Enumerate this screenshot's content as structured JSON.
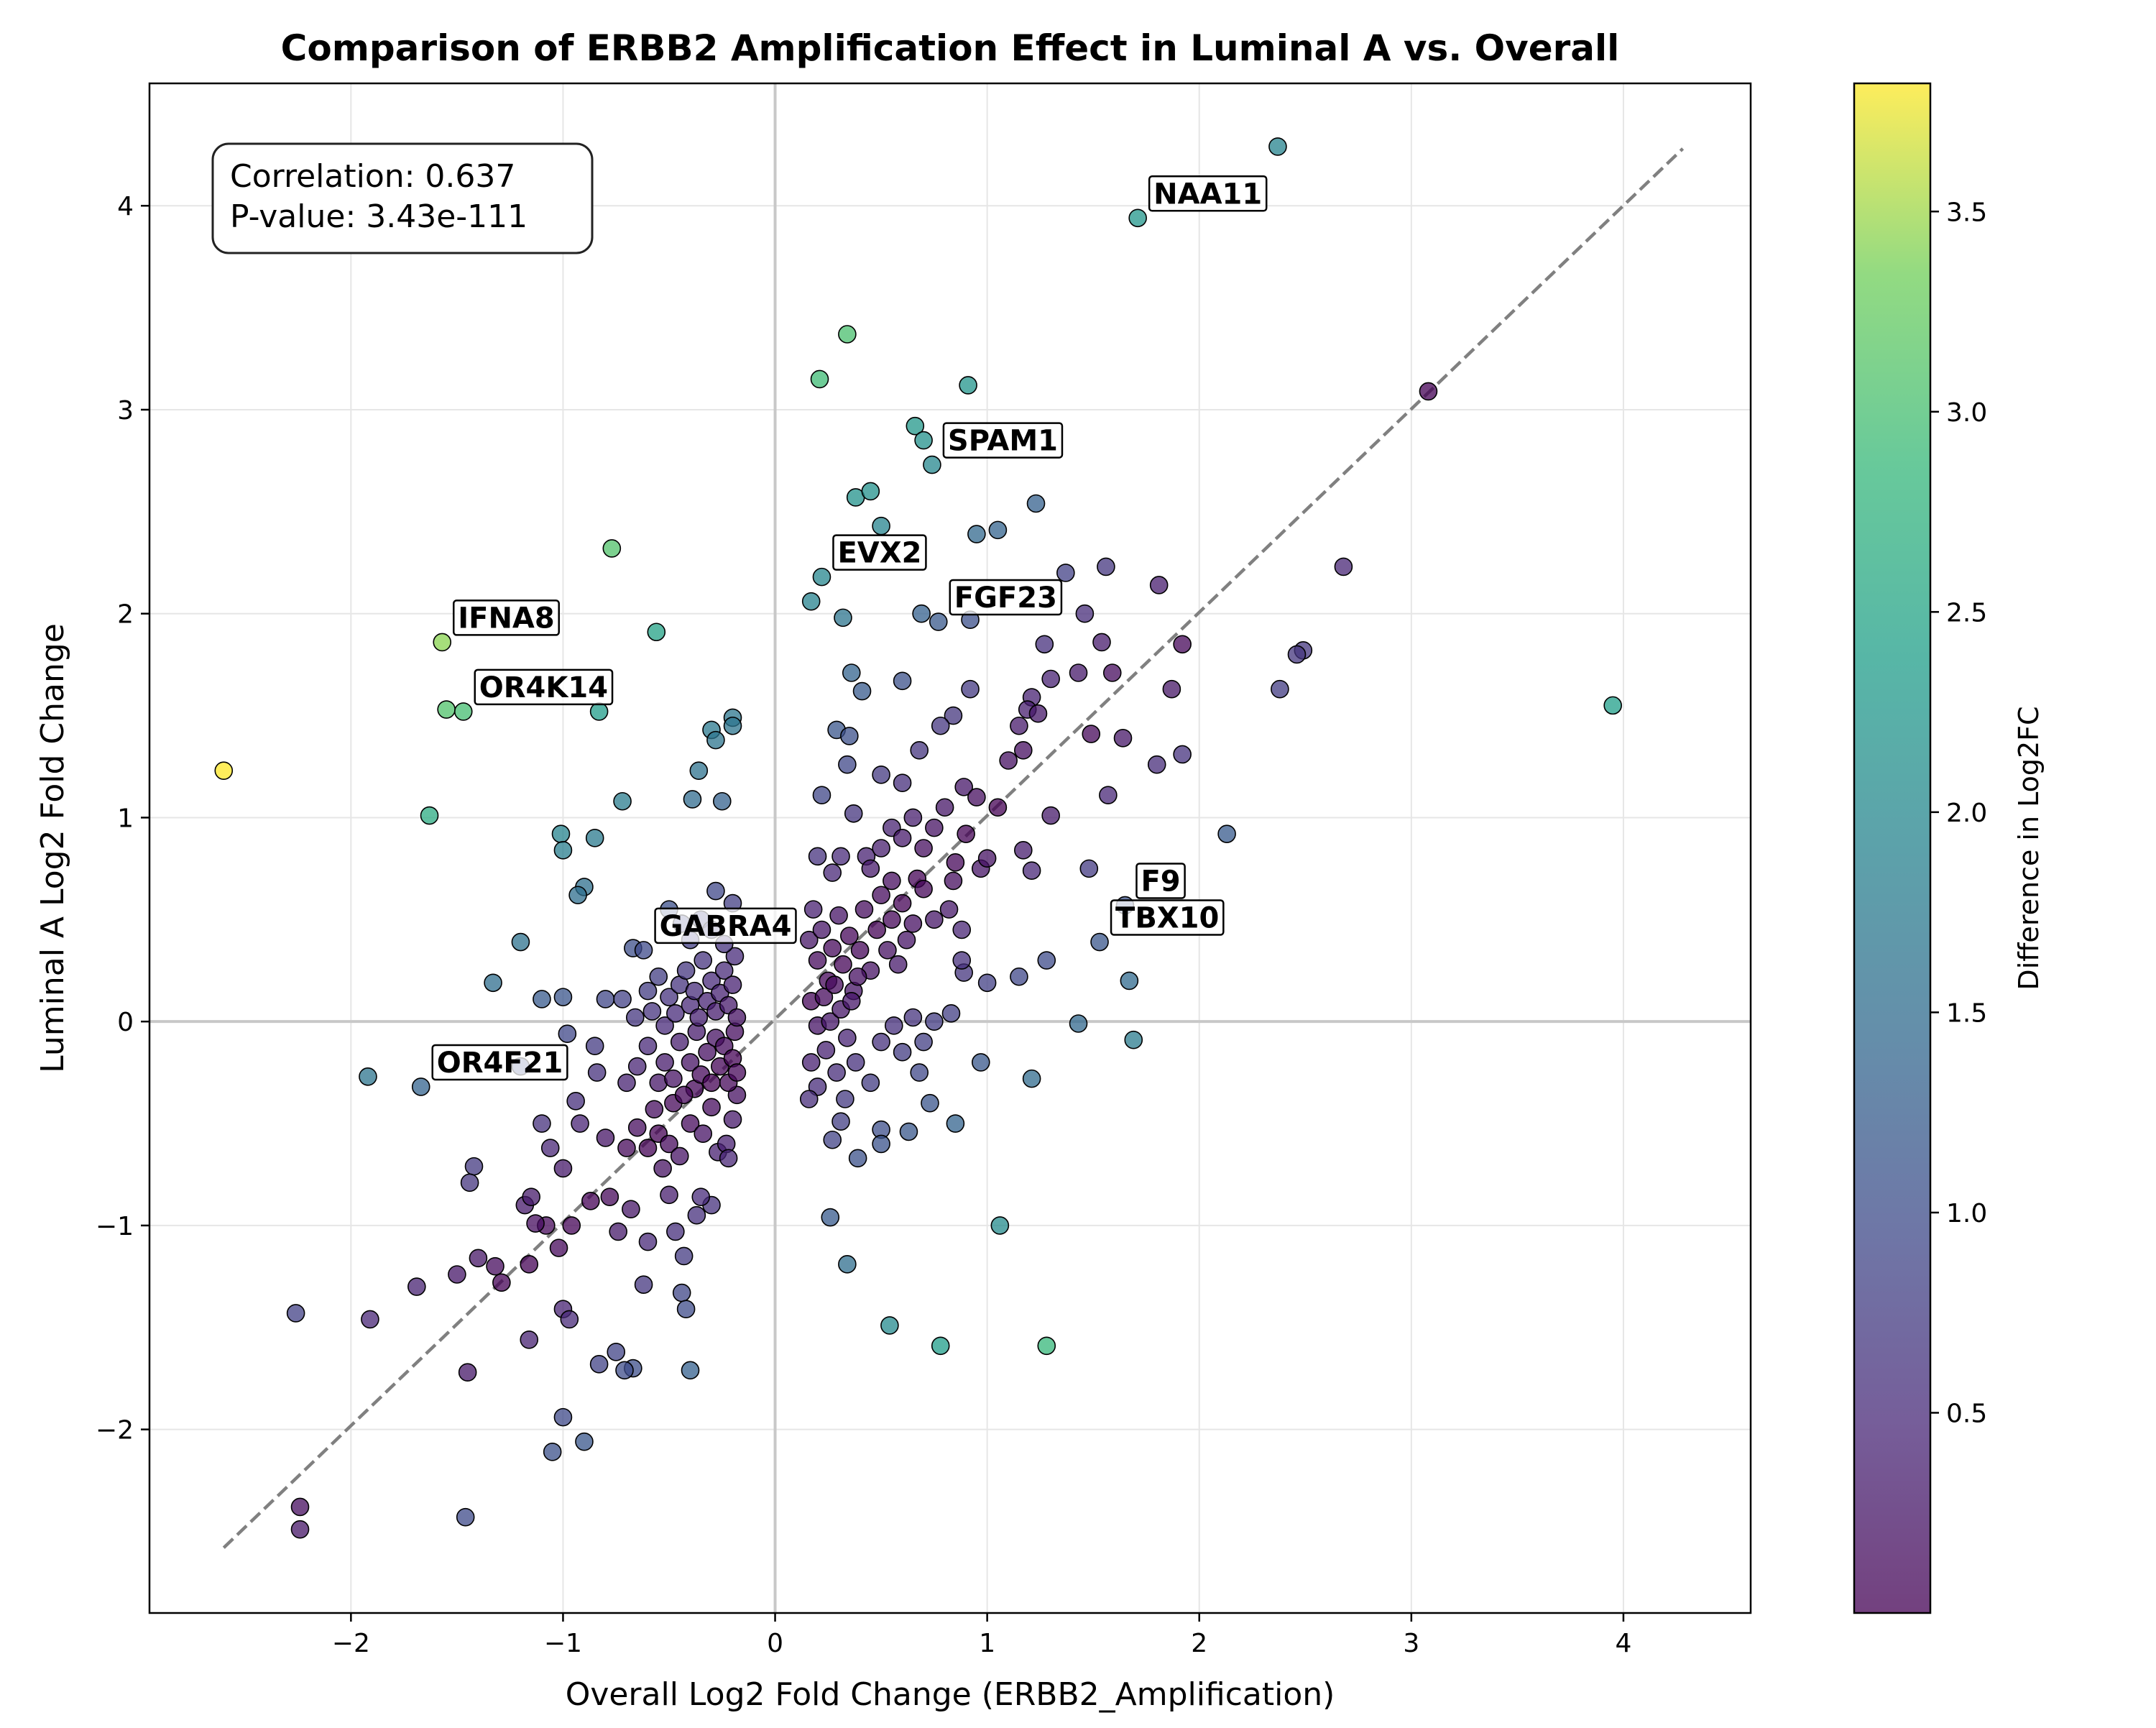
{
  "chart_data": {
    "type": "scatter",
    "title": "Comparison of ERBB2 Amplification Effect in Luminal A vs. Overall",
    "xlabel": "Overall Log2 Fold Change (ERBB2_Amplification)",
    "ylabel": "Luminal A Log2 Fold Change",
    "xlim": [
      -2.95,
      4.6
    ],
    "ylim": [
      -2.9,
      4.6
    ],
    "x_ticks": [
      -2,
      -1,
      0,
      1,
      2,
      3,
      4
    ],
    "y_ticks": [
      -2,
      -1,
      0,
      1,
      2,
      3,
      4
    ],
    "x_tick_labels": [
      "−2",
      "−1",
      "0",
      "1",
      "2",
      "3",
      "4"
    ],
    "y_tick_labels": [
      "−2",
      "−1",
      "0",
      "1",
      "2",
      "3",
      "4"
    ],
    "grid": true,
    "reference_line": {
      "style": "dashed",
      "color": "#808080",
      "from": [
        -2.6,
        -2.58
      ],
      "to": [
        4.28,
        4.28
      ]
    },
    "zero_lines": {
      "x": 0,
      "y": 0
    },
    "stats_box": {
      "placement": "top-left",
      "correlation": "Correlation: 0.637",
      "p_value": "P-value: 3.43e-111"
    },
    "colorbar": {
      "label": "Difference in Log2FC",
      "colormap": "viridis",
      "range": [
        0.0,
        3.82
      ],
      "ticks": [
        0.5,
        1.0,
        1.5,
        2.0,
        2.5,
        3.0,
        3.5
      ],
      "tick_labels": [
        "0.5",
        "1.0",
        "1.5",
        "2.0",
        "2.5",
        "3.0",
        "3.5"
      ]
    },
    "points": [
      {
        "x": 2.37,
        "y": 4.29
      },
      {
        "x": 1.71,
        "y": 3.94,
        "label": "NAA11"
      },
      {
        "x": 3.08,
        "y": 3.09
      },
      {
        "x": 0.34,
        "y": 3.37
      },
      {
        "x": 0.21,
        "y": 3.15
      },
      {
        "x": 0.91,
        "y": 3.12
      },
      {
        "x": 0.66,
        "y": 2.92
      },
      {
        "x": 0.7,
        "y": 2.85
      },
      {
        "x": 0.74,
        "y": 2.73,
        "label": "SPAM1"
      },
      {
        "x": 1.23,
        "y": 2.54
      },
      {
        "x": 0.38,
        "y": 2.57
      },
      {
        "x": 0.45,
        "y": 2.6
      },
      {
        "x": 0.5,
        "y": 2.43
      },
      {
        "x": 0.95,
        "y": 2.39
      },
      {
        "x": 1.05,
        "y": 2.41
      },
      {
        "x": 2.68,
        "y": 2.23
      },
      {
        "x": 1.56,
        "y": 2.23
      },
      {
        "x": 1.37,
        "y": 2.2
      },
      {
        "x": 1.81,
        "y": 2.14
      },
      {
        "x": 0.22,
        "y": 2.18,
        "label": "EVX2"
      },
      {
        "x": 0.17,
        "y": 2.06
      },
      {
        "x": 0.32,
        "y": 1.98
      },
      {
        "x": 0.69,
        "y": 2.0
      },
      {
        "x": 0.77,
        "y": 1.96,
        "label": "FGF23"
      },
      {
        "x": 0.92,
        "y": 1.97
      },
      {
        "x": 1.46,
        "y": 2.0
      },
      {
        "x": 1.27,
        "y": 1.85
      },
      {
        "x": 1.54,
        "y": 1.86
      },
      {
        "x": 1.92,
        "y": 1.85
      },
      {
        "x": 2.49,
        "y": 1.82
      },
      {
        "x": 2.46,
        "y": 1.8
      },
      {
        "x": 2.38,
        "y": 1.63
      },
      {
        "x": 3.95,
        "y": 1.55
      },
      {
        "x": -0.77,
        "y": 2.32
      },
      {
        "x": -1.57,
        "y": 1.86,
        "label": "IFNA8"
      },
      {
        "x": -0.56,
        "y": 1.91
      },
      {
        "x": -1.55,
        "y": 1.53
      },
      {
        "x": -1.47,
        "y": 1.52,
        "label": "OR4K14"
      },
      {
        "x": -0.83,
        "y": 1.52
      },
      {
        "x": -2.6,
        "y": 1.23
      },
      {
        "x": -1.63,
        "y": 1.01
      },
      {
        "x": -0.72,
        "y": 1.08
      },
      {
        "x": -1.01,
        "y": 0.92
      },
      {
        "x": -1.0,
        "y": 0.84
      },
      {
        "x": -0.85,
        "y": 0.9
      },
      {
        "x": -0.9,
        "y": 0.66
      },
      {
        "x": -0.93,
        "y": 0.62
      },
      {
        "x": -0.3,
        "y": 1.43
      },
      {
        "x": -0.2,
        "y": 1.49
      },
      {
        "x": -0.28,
        "y": 1.38
      },
      {
        "x": -0.2,
        "y": 1.45
      },
      {
        "x": -0.36,
        "y": 1.23
      },
      {
        "x": -0.39,
        "y": 1.09
      },
      {
        "x": -0.25,
        "y": 1.08
      },
      {
        "x": -1.2,
        "y": 0.39
      },
      {
        "x": -1.33,
        "y": 0.19
      },
      {
        "x": -1.1,
        "y": 0.11
      },
      {
        "x": -1.0,
        "y": 0.12
      },
      {
        "x": -0.8,
        "y": 0.11
      },
      {
        "x": -0.67,
        "y": 0.36
      },
      {
        "x": -0.62,
        "y": 0.35,
        "label": "GABRA4"
      },
      {
        "x": -0.98,
        "y": -0.06
      },
      {
        "x": -0.85,
        "y": -0.12
      },
      {
        "x": -1.92,
        "y": -0.27
      },
      {
        "x": -1.67,
        "y": -0.32,
        "label": "OR4F21"
      },
      {
        "x": -1.2,
        "y": -0.22
      },
      {
        "x": 0.36,
        "y": 1.71
      },
      {
        "x": 0.41,
        "y": 1.62
      },
      {
        "x": 0.6,
        "y": 1.67
      },
      {
        "x": 0.92,
        "y": 1.63
      },
      {
        "x": 0.29,
        "y": 1.43
      },
      {
        "x": 0.35,
        "y": 1.4
      },
      {
        "x": 0.34,
        "y": 1.26
      },
      {
        "x": 0.84,
        "y": 1.5
      },
      {
        "x": 0.78,
        "y": 1.45
      },
      {
        "x": 0.68,
        "y": 1.33
      },
      {
        "x": 0.6,
        "y": 1.17
      },
      {
        "x": 0.5,
        "y": 1.21
      },
      {
        "x": 0.89,
        "y": 1.15
      },
      {
        "x": 1.21,
        "y": 1.59
      },
      {
        "x": 1.19,
        "y": 1.53
      },
      {
        "x": 1.24,
        "y": 1.51
      },
      {
        "x": 1.15,
        "y": 1.45
      },
      {
        "x": 1.17,
        "y": 1.33
      },
      {
        "x": 1.1,
        "y": 1.28
      },
      {
        "x": 1.43,
        "y": 1.71
      },
      {
        "x": 1.3,
        "y": 1.68
      },
      {
        "x": 1.59,
        "y": 1.71
      },
      {
        "x": 1.87,
        "y": 1.63
      },
      {
        "x": 1.49,
        "y": 1.41
      },
      {
        "x": 1.64,
        "y": 1.39
      },
      {
        "x": 1.92,
        "y": 1.31
      },
      {
        "x": 1.8,
        "y": 1.26
      },
      {
        "x": 1.57,
        "y": 1.11
      },
      {
        "x": 1.3,
        "y": 1.01
      },
      {
        "x": 1.17,
        "y": 0.84
      },
      {
        "x": 1.21,
        "y": 0.74
      },
      {
        "x": 0.97,
        "y": 0.75
      },
      {
        "x": 0.22,
        "y": 1.11
      },
      {
        "x": 0.37,
        "y": 1.02
      },
      {
        "x": 0.2,
        "y": 0.81
      },
      {
        "x": 0.31,
        "y": 0.81
      },
      {
        "x": 0.43,
        "y": 0.81
      },
      {
        "x": 0.27,
        "y": 0.73
      },
      {
        "x": 0.55,
        "y": 0.69
      },
      {
        "x": 0.67,
        "y": 0.7
      },
      {
        "x": 0.84,
        "y": 0.69
      },
      {
        "x": 1.48,
        "y": 0.75
      },
      {
        "x": 2.13,
        "y": 0.92
      },
      {
        "x": 1.65,
        "y": 0.57,
        "label": "F9"
      },
      {
        "x": 1.53,
        "y": 0.39,
        "label": "TBX10"
      },
      {
        "x": 1.28,
        "y": 0.3
      },
      {
        "x": 1.15,
        "y": 0.22
      },
      {
        "x": 1.0,
        "y": 0.19
      },
      {
        "x": 0.89,
        "y": 0.24
      },
      {
        "x": 0.88,
        "y": 0.45
      },
      {
        "x": 1.67,
        "y": 0.2
      },
      {
        "x": 1.43,
        "y": -0.01
      },
      {
        "x": 1.69,
        "y": -0.09
      },
      {
        "x": 0.97,
        "y": -0.2
      },
      {
        "x": 1.21,
        "y": -0.28
      },
      {
        "x": 0.85,
        "y": -0.5
      },
      {
        "x": 0.73,
        "y": -0.4
      },
      {
        "x": 0.63,
        "y": -0.54
      },
      {
        "x": 0.5,
        "y": -0.53
      },
      {
        "x": 0.5,
        "y": -0.6
      },
      {
        "x": 0.39,
        "y": -0.67
      },
      {
        "x": 0.31,
        "y": -0.49
      },
      {
        "x": 0.27,
        "y": -0.58
      },
      {
        "x": 0.26,
        "y": -0.96
      },
      {
        "x": 1.06,
        "y": -1.0
      },
      {
        "x": 0.34,
        "y": -1.19
      },
      {
        "x": 0.54,
        "y": -1.49
      },
      {
        "x": 0.78,
        "y": -1.59
      },
      {
        "x": 1.28,
        "y": -1.59
      },
      {
        "x": -0.4,
        "y": -1.71
      },
      {
        "x": -0.67,
        "y": -1.7
      },
      {
        "x": -0.75,
        "y": -1.62
      },
      {
        "x": -0.83,
        "y": -1.68
      },
      {
        "x": -0.71,
        "y": -1.71
      },
      {
        "x": -1.0,
        "y": -1.94
      },
      {
        "x": -1.05,
        "y": -2.11
      },
      {
        "x": -0.9,
        "y": -2.06
      },
      {
        "x": -1.46,
        "y": -2.43
      },
      {
        "x": -2.24,
        "y": -2.38
      },
      {
        "x": -2.24,
        "y": -2.49
      },
      {
        "x": -2.26,
        "y": -1.43
      },
      {
        "x": -1.91,
        "y": -1.46
      },
      {
        "x": -1.69,
        "y": -1.3
      },
      {
        "x": -1.5,
        "y": -1.24
      },
      {
        "x": -1.45,
        "y": -1.72
      },
      {
        "x": -1.4,
        "y": -1.16
      },
      {
        "x": -1.32,
        "y": -1.2
      },
      {
        "x": -1.29,
        "y": -1.28
      },
      {
        "x": -1.16,
        "y": -1.19
      },
      {
        "x": -1.16,
        "y": -1.56
      },
      {
        "x": -1.0,
        "y": -1.41
      },
      {
        "x": -0.97,
        "y": -1.46
      },
      {
        "x": -1.02,
        "y": -1.11
      },
      {
        "x": -1.08,
        "y": -1.0
      },
      {
        "x": -1.13,
        "y": -0.99
      },
      {
        "x": -1.18,
        "y": -0.9
      },
      {
        "x": -1.15,
        "y": -0.86
      },
      {
        "x": -1.42,
        "y": -0.71
      },
      {
        "x": -1.44,
        "y": -0.79
      },
      {
        "x": -0.96,
        "y": -1.0
      },
      {
        "x": -0.87,
        "y": -0.88
      },
      {
        "x": -1.06,
        "y": -0.62
      },
      {
        "x": -1.0,
        "y": -0.72
      },
      {
        "x": -1.1,
        "y": -0.5
      },
      {
        "x": -0.92,
        "y": -0.5
      },
      {
        "x": -0.94,
        "y": -0.39
      },
      {
        "x": -0.84,
        "y": -0.25
      },
      {
        "x": -0.62,
        "y": -1.29
      },
      {
        "x": -0.74,
        "y": -1.03
      },
      {
        "x": -0.78,
        "y": -0.86
      },
      {
        "x": -0.68,
        "y": -0.92
      },
      {
        "x": -0.5,
        "y": -0.85
      },
      {
        "x": -0.44,
        "y": -1.33
      },
      {
        "x": -0.42,
        "y": -1.41
      },
      {
        "x": -0.6,
        "y": -1.08
      },
      {
        "x": -0.43,
        "y": -1.15
      },
      {
        "x": -0.47,
        "y": -1.03
      },
      {
        "x": -0.37,
        "y": -0.95
      },
      {
        "x": -0.3,
        "y": -0.9
      },
      {
        "x": -0.35,
        "y": -0.86
      },
      {
        "x": -0.53,
        "y": -0.72
      },
      {
        "x": -0.8,
        "y": -0.57
      },
      {
        "x": -0.7,
        "y": -0.62
      },
      {
        "x": -0.65,
        "y": -0.52
      },
      {
        "x": -0.6,
        "y": -0.62
      },
      {
        "x": -0.57,
        "y": -0.43
      },
      {
        "x": -0.55,
        "y": -0.55
      },
      {
        "x": -0.5,
        "y": -0.6
      },
      {
        "x": -0.48,
        "y": -0.4
      },
      {
        "x": -0.45,
        "y": -0.66
      },
      {
        "x": -0.4,
        "y": -0.5
      },
      {
        "x": -0.38,
        "y": -0.33
      },
      {
        "x": -0.34,
        "y": -0.55
      },
      {
        "x": -0.3,
        "y": -0.42
      },
      {
        "x": -0.27,
        "y": -0.64
      },
      {
        "x": -0.23,
        "y": -0.6
      },
      {
        "x": -0.22,
        "y": -0.67
      },
      {
        "x": -0.2,
        "y": -0.48
      },
      {
        "x": -0.18,
        "y": -0.36
      },
      {
        "x": -0.7,
        "y": -0.3
      },
      {
        "x": -0.65,
        "y": -0.22
      },
      {
        "x": -0.6,
        "y": -0.12
      },
      {
        "x": -0.55,
        "y": -0.3
      },
      {
        "x": -0.52,
        "y": -0.2
      },
      {
        "x": -0.48,
        "y": -0.28
      },
      {
        "x": -0.45,
        "y": -0.1
      },
      {
        "x": -0.43,
        "y": -0.36
      },
      {
        "x": -0.4,
        "y": -0.2
      },
      {
        "x": -0.37,
        "y": -0.05
      },
      {
        "x": -0.35,
        "y": -0.26
      },
      {
        "x": -0.32,
        "y": -0.15
      },
      {
        "x": -0.3,
        "y": -0.3
      },
      {
        "x": -0.28,
        "y": -0.08
      },
      {
        "x": -0.26,
        "y": -0.22
      },
      {
        "x": -0.24,
        "y": -0.12
      },
      {
        "x": -0.22,
        "y": -0.3
      },
      {
        "x": -0.2,
        "y": -0.18
      },
      {
        "x": -0.19,
        "y": -0.05
      },
      {
        "x": -0.18,
        "y": -0.25
      },
      {
        "x": -0.72,
        "y": 0.11
      },
      {
        "x": -0.66,
        "y": 0.02
      },
      {
        "x": -0.6,
        "y": 0.15
      },
      {
        "x": -0.58,
        "y": 0.05
      },
      {
        "x": -0.55,
        "y": 0.22
      },
      {
        "x": -0.52,
        "y": -0.02
      },
      {
        "x": -0.5,
        "y": 0.12
      },
      {
        "x": -0.47,
        "y": 0.04
      },
      {
        "x": -0.45,
        "y": 0.18
      },
      {
        "x": -0.42,
        "y": 0.25
      },
      {
        "x": -0.4,
        "y": 0.08
      },
      {
        "x": -0.38,
        "y": 0.15
      },
      {
        "x": -0.36,
        "y": 0.02
      },
      {
        "x": -0.34,
        "y": 0.3
      },
      {
        "x": -0.32,
        "y": 0.1
      },
      {
        "x": -0.3,
        "y": 0.2
      },
      {
        "x": -0.28,
        "y": 0.05
      },
      {
        "x": -0.26,
        "y": 0.14
      },
      {
        "x": -0.24,
        "y": 0.25
      },
      {
        "x": -0.22,
        "y": 0.08
      },
      {
        "x": -0.2,
        "y": 0.18
      },
      {
        "x": -0.19,
        "y": 0.32
      },
      {
        "x": -0.18,
        "y": 0.02
      },
      {
        "x": -0.5,
        "y": 0.55
      },
      {
        "x": -0.44,
        "y": 0.48
      },
      {
        "x": -0.4,
        "y": 0.4
      },
      {
        "x": -0.35,
        "y": 0.5
      },
      {
        "x": -0.3,
        "y": 0.45
      },
      {
        "x": -0.28,
        "y": 0.64
      },
      {
        "x": -0.2,
        "y": 0.58
      },
      {
        "x": -0.24,
        "y": 0.38
      },
      {
        "x": 0.16,
        "y": 0.4
      },
      {
        "x": 0.18,
        "y": 0.55
      },
      {
        "x": 0.2,
        "y": 0.3
      },
      {
        "x": 0.22,
        "y": 0.45
      },
      {
        "x": 0.25,
        "y": 0.2
      },
      {
        "x": 0.27,
        "y": 0.36
      },
      {
        "x": 0.3,
        "y": 0.52
      },
      {
        "x": 0.32,
        "y": 0.28
      },
      {
        "x": 0.35,
        "y": 0.42
      },
      {
        "x": 0.37,
        "y": 0.15
      },
      {
        "x": 0.4,
        "y": 0.35
      },
      {
        "x": 0.42,
        "y": 0.55
      },
      {
        "x": 0.45,
        "y": 0.25
      },
      {
        "x": 0.48,
        "y": 0.45
      },
      {
        "x": 0.5,
        "y": 0.62
      },
      {
        "x": 0.53,
        "y": 0.35
      },
      {
        "x": 0.55,
        "y": 0.5
      },
      {
        "x": 0.58,
        "y": 0.28
      },
      {
        "x": 0.6,
        "y": 0.58
      },
      {
        "x": 0.62,
        "y": 0.4
      },
      {
        "x": 0.65,
        "y": 0.48
      },
      {
        "x": 0.17,
        "y": 0.1
      },
      {
        "x": 0.2,
        "y": -0.02
      },
      {
        "x": 0.23,
        "y": 0.12
      },
      {
        "x": 0.26,
        "y": 0.0
      },
      {
        "x": 0.28,
        "y": 0.18
      },
      {
        "x": 0.31,
        "y": 0.06
      },
      {
        "x": 0.34,
        "y": -0.08
      },
      {
        "x": 0.36,
        "y": 0.1
      },
      {
        "x": 0.39,
        "y": 0.22
      },
      {
        "x": 0.17,
        "y": -0.2
      },
      {
        "x": 0.2,
        "y": -0.32
      },
      {
        "x": 0.24,
        "y": -0.14
      },
      {
        "x": 0.29,
        "y": -0.25
      },
      {
        "x": 0.33,
        "y": -0.38
      },
      {
        "x": 0.38,
        "y": -0.2
      },
      {
        "x": 0.45,
        "y": -0.3
      },
      {
        "x": 0.16,
        "y": -0.38
      },
      {
        "x": 0.5,
        "y": -0.1
      },
      {
        "x": 0.56,
        "y": -0.02
      },
      {
        "x": 0.6,
        "y": -0.15
      },
      {
        "x": 0.65,
        "y": 0.02
      },
      {
        "x": 0.7,
        "y": -0.1
      },
      {
        "x": 0.75,
        "y": 0.0
      },
      {
        "x": 0.68,
        "y": -0.25
      },
      {
        "x": 0.83,
        "y": 0.04
      },
      {
        "x": 0.55,
        "y": 0.95
      },
      {
        "x": 0.6,
        "y": 0.9
      },
      {
        "x": 0.65,
        "y": 1.0
      },
      {
        "x": 0.7,
        "y": 0.85
      },
      {
        "x": 0.75,
        "y": 0.95
      },
      {
        "x": 0.8,
        "y": 1.05
      },
      {
        "x": 0.85,
        "y": 0.78
      },
      {
        "x": 0.9,
        "y": 0.92
      },
      {
        "x": 0.95,
        "y": 1.1
      },
      {
        "x": 1.0,
        "y": 0.8
      },
      {
        "x": 1.05,
        "y": 1.05
      },
      {
        "x": 0.45,
        "y": 0.75
      },
      {
        "x": 0.5,
        "y": 0.85
      },
      {
        "x": 0.7,
        "y": 0.65
      },
      {
        "x": 0.82,
        "y": 0.55
      },
      {
        "x": 0.75,
        "y": 0.5
      },
      {
        "x": 0.88,
        "y": 0.3
      }
    ]
  }
}
